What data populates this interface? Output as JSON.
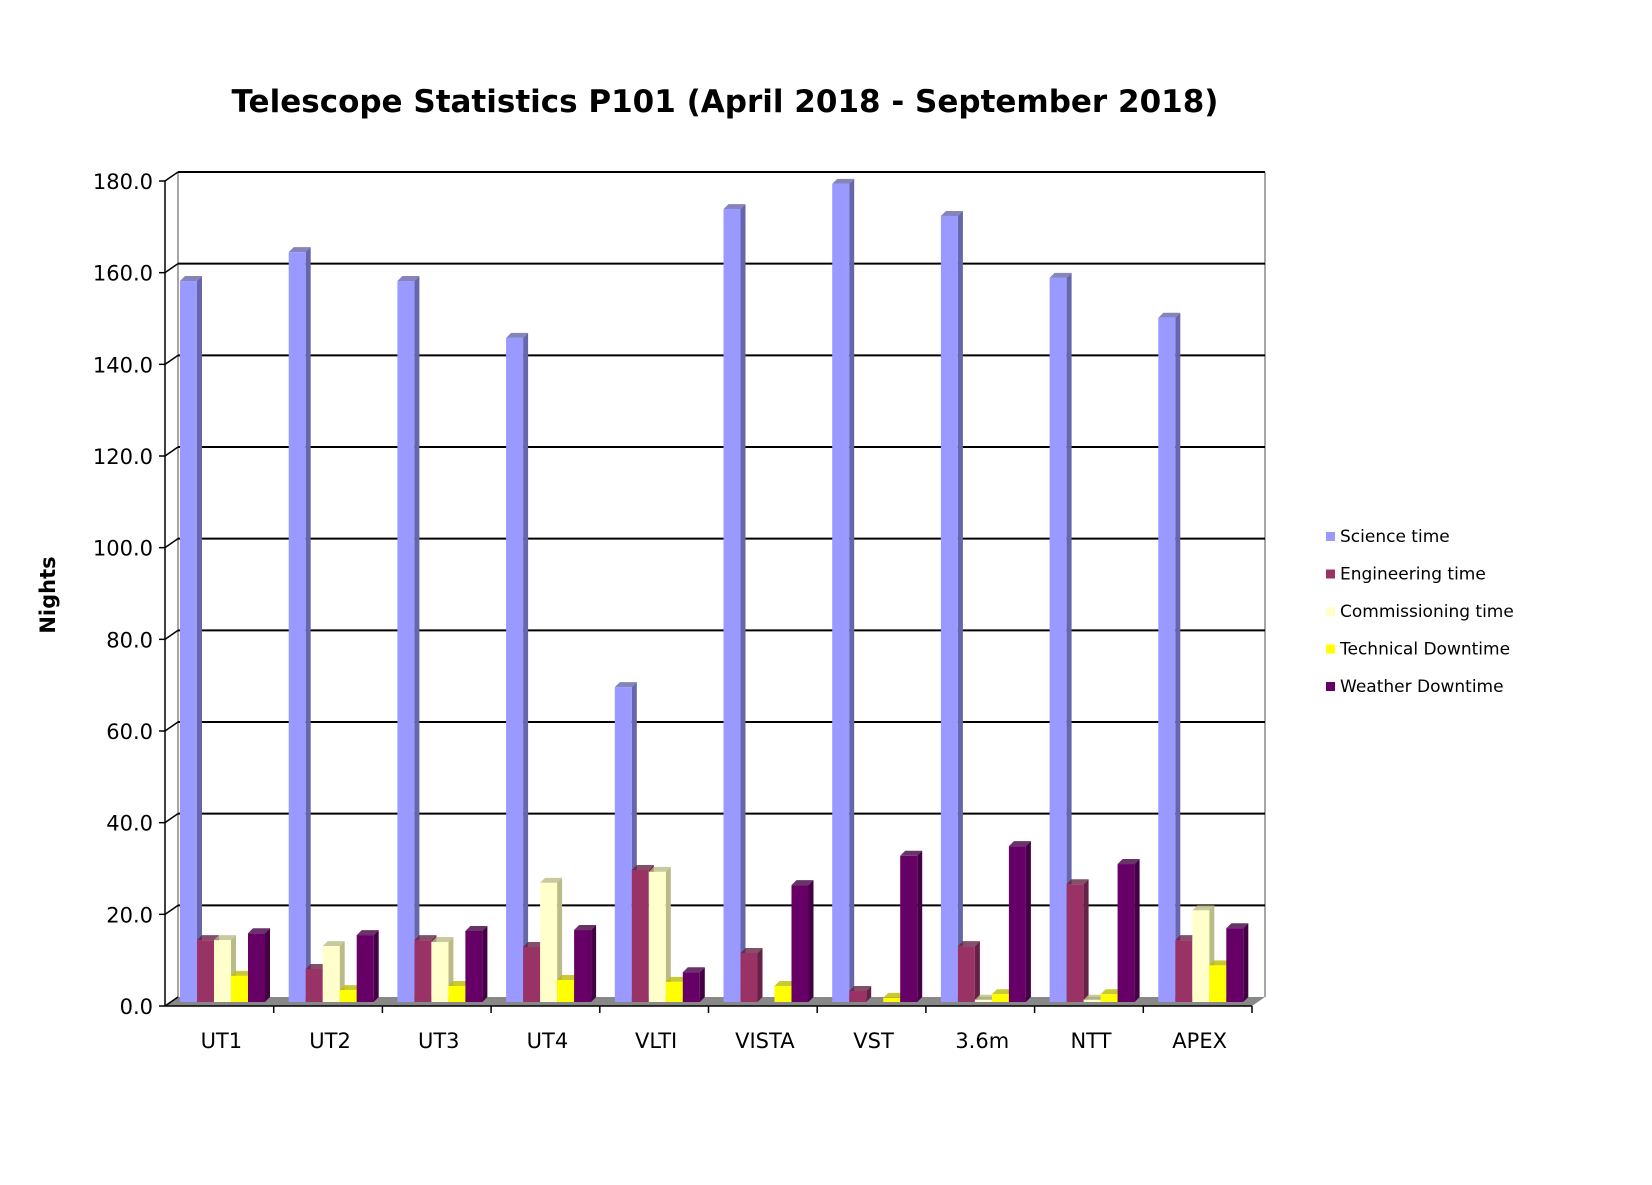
{
  "chart_data": {
    "type": "bar",
    "title": "Telescope Statistics P101 (April 2018 - September 2018)",
    "xlabel": "",
    "ylabel": "Nights",
    "ylim": [
      0,
      180
    ],
    "yticks": [
      "0.0",
      "20.0",
      "40.0",
      "60.0",
      "80.0",
      "100.0",
      "120.0",
      "140.0",
      "160.0",
      "180.0"
    ],
    "grid": true,
    "legend_position": "right",
    "categories": [
      "UT1",
      "UT2",
      "UT3",
      "UT4",
      "VLTI",
      "VISTA",
      "VST",
      "3.6m",
      "NTT",
      "APEX"
    ],
    "series": [
      {
        "name": "Science time",
        "color": "#9999ff",
        "side": "#6666aa",
        "values": [
          157.3,
          163.6,
          157.3,
          144.9,
          68.7,
          173.0,
          178.5,
          171.5,
          158.0,
          149.3
        ]
      },
      {
        "name": "Engineering time",
        "color": "#993366",
        "side": "#662244",
        "values": [
          13.5,
          7.2,
          13.5,
          12.0,
          28.8,
          10.7,
          2.4,
          12.2,
          25.7,
          13.5
        ]
      },
      {
        "name": "Commissioning time",
        "color": "#ffffcc",
        "side": "#bbbb88",
        "values": [
          13.5,
          12.2,
          13.1,
          26.0,
          28.4,
          0,
          0,
          0.5,
          0.5,
          20.0
        ]
      },
      {
        "name": "Technical Downtime",
        "color": "#ffff00",
        "side": "#bbbb00",
        "values": [
          5.7,
          2.6,
          3.5,
          4.8,
          4.4,
          3.5,
          0.9,
          1.7,
          1.7,
          8.0
        ]
      },
      {
        "name": "Weather Downtime",
        "color": "#660066",
        "side": "#440044",
        "values": [
          15.0,
          14.6,
          15.5,
          15.7,
          6.5,
          25.5,
          31.9,
          34.0,
          30.1,
          16.1
        ]
      }
    ]
  }
}
